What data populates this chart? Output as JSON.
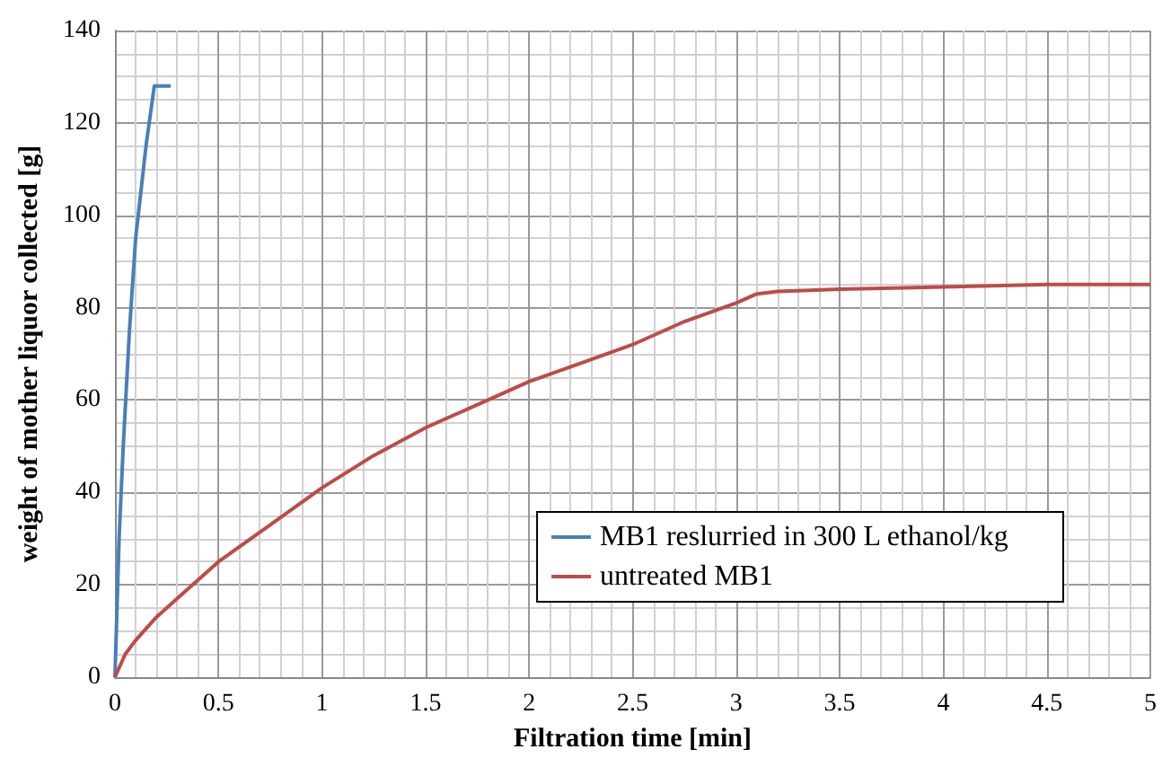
{
  "chart_data": {
    "type": "line",
    "xlabel": "Filtration time [min]",
    "ylabel": "weight of mother liquor collected [g]",
    "xlim": [
      0,
      5
    ],
    "xticks": [
      0,
      0.5,
      1,
      1.5,
      2,
      2.5,
      3,
      3.5,
      4,
      4.5,
      5
    ],
    "ylim": [
      0,
      140
    ],
    "yticks": [
      0,
      20,
      40,
      60,
      80,
      100,
      120,
      140
    ],
    "grid": true,
    "legend": "bottom right",
    "marker": "none",
    "line_style": "solid",
    "series": [
      {
        "name": "MB1 reslurried in 300 L ethanol/kg",
        "color": "#4a7ebb",
        "x": [
          0,
          0.02,
          0.04,
          0.07,
          0.1,
          0.15,
          0.19,
          0.27
        ],
        "values": [
          0,
          30,
          50,
          75,
          95,
          115,
          128,
          128
        ]
      },
      {
        "name": "untreated MB1",
        "color": "#be4b48",
        "x": [
          0,
          0.05,
          0.1,
          0.2,
          0.3,
          0.5,
          0.75,
          1,
          1.25,
          1.5,
          1.75,
          2,
          2.25,
          2.5,
          2.75,
          3,
          3.1,
          3.2,
          3.5,
          4,
          4.5,
          5
        ],
        "values": [
          0,
          5,
          8,
          13,
          17,
          25,
          33,
          41,
          48,
          54,
          59,
          64,
          68,
          72,
          77,
          81,
          83,
          83.5,
          84,
          84.5,
          85,
          85
        ]
      }
    ]
  }
}
